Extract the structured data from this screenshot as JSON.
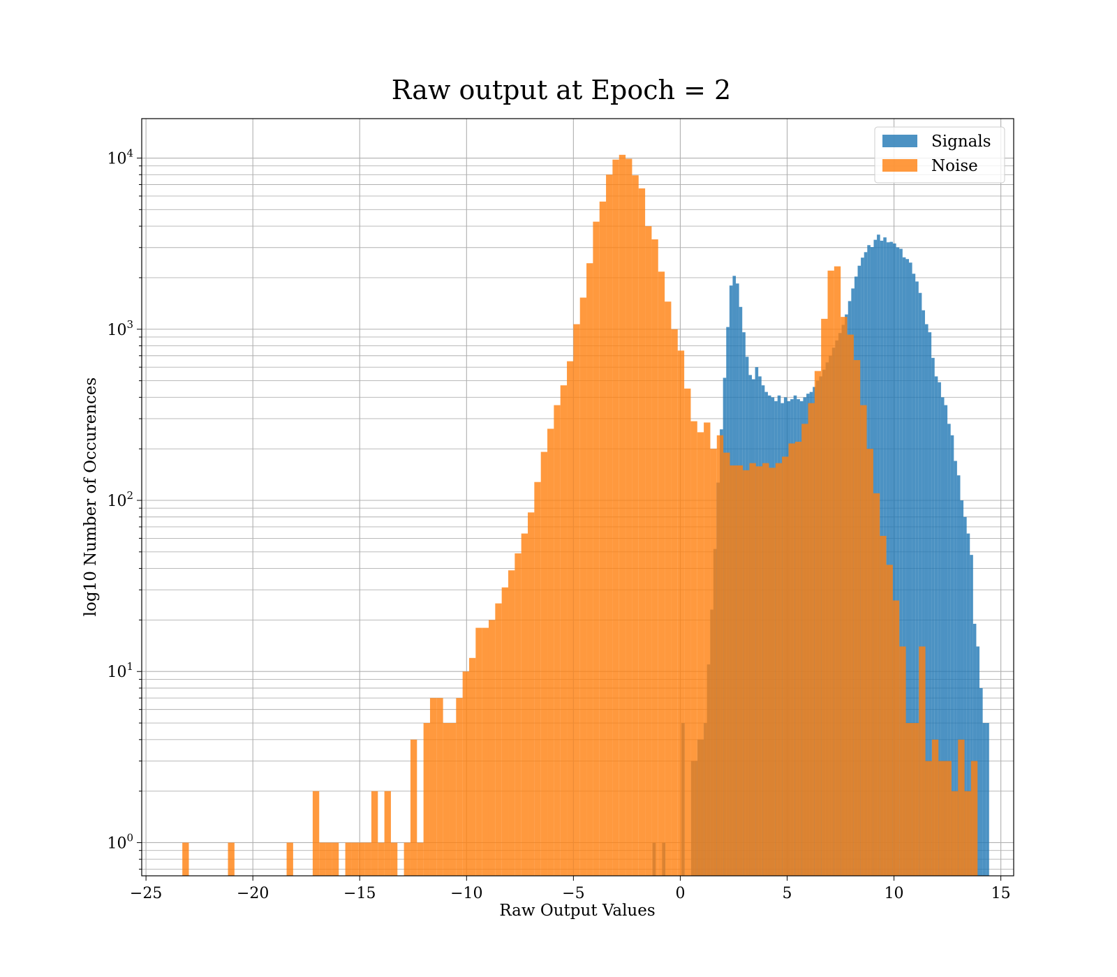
{
  "chart_data": {
    "type": "bar",
    "title": "Raw output at Epoch = 2",
    "xlabel": "Raw Output Values",
    "ylabel": "log10 Number of Occurences",
    "yscale": "log",
    "xlim": [
      -25.2,
      15.6
    ],
    "ylim": [
      0.64,
      17000
    ],
    "grid": true,
    "legend_position": "upper right",
    "xticks": [
      -25,
      -20,
      -15,
      -10,
      -5,
      0,
      5,
      10,
      15
    ],
    "xtick_labels": [
      "−25",
      "−20",
      "−15",
      "−10",
      "−5",
      "0",
      "5",
      "10",
      "15"
    ],
    "yticks": [
      {
        "value": 1,
        "base": "10",
        "exp": "0"
      },
      {
        "value": 10,
        "base": "10",
        "exp": "1"
      },
      {
        "value": 100,
        "base": "10",
        "exp": "2"
      },
      {
        "value": 1000,
        "base": "10",
        "exp": "3"
      },
      {
        "value": 10000,
        "base": "10",
        "exp": "4"
      }
    ],
    "series": [
      {
        "name": "Signals",
        "color": "#1f77b4",
        "opacity": 0.8,
        "bin_start": -1.3,
        "bin_width": 0.15,
        "values": [
          1,
          0,
          0,
          1,
          0,
          0,
          0,
          0,
          0,
          5,
          0,
          0,
          3,
          3,
          4,
          4,
          5,
          11,
          23,
          52,
          127,
          260,
          520,
          1030,
          1800,
          2050,
          1850,
          1350,
          960,
          690,
          540,
          510,
          600,
          530,
          470,
          430,
          410,
          400,
          380,
          410,
          370,
          400,
          380,
          390,
          410,
          390,
          380,
          400,
          420,
          430,
          460,
          500,
          530,
          580,
          640,
          700,
          780,
          860,
          950,
          1060,
          1220,
          1460,
          1730,
          2030,
          2350,
          2620,
          2820,
          3100,
          3020,
          3330,
          3570,
          3290,
          3440,
          3220,
          3240,
          3170,
          3010,
          2950,
          2630,
          2570,
          2450,
          2110,
          1900,
          1630,
          1290,
          1070,
          960,
          680,
          530,
          490,
          400,
          360,
          280,
          240,
          170,
          140,
          100,
          80,
          64,
          48,
          19,
          14,
          8,
          5,
          5,
          0
        ]
      },
      {
        "name": "Noise",
        "color": "#ff7f0e",
        "opacity": 0.8,
        "bin_start": -23.3,
        "bin_width": 0.305,
        "values": [
          1,
          0,
          0,
          0,
          0,
          0,
          0,
          1,
          0,
          0,
          0,
          0,
          0,
          0,
          0,
          0,
          1,
          0,
          0,
          0,
          2,
          1,
          1,
          1,
          0,
          1,
          1,
          1,
          1,
          2,
          1,
          2,
          1,
          0,
          1,
          4,
          1,
          5,
          7,
          7,
          5,
          5,
          7,
          10,
          12,
          18,
          18,
          20,
          25,
          31,
          39,
          49,
          64,
          85,
          128,
          192,
          262,
          360,
          470,
          650,
          1070,
          1530,
          2430,
          4250,
          5570,
          8000,
          9800,
          10450,
          9900,
          7930,
          6650,
          4000,
          3350,
          2170,
          1450,
          1000,
          750,
          450,
          290,
          250,
          285,
          200,
          240,
          190,
          160,
          160,
          150,
          165,
          158,
          165,
          155,
          165,
          180,
          215,
          220,
          280,
          370,
          570,
          1150,
          2200,
          2330,
          1180,
          930,
          660,
          360,
          200,
          110,
          62,
          42,
          26,
          14,
          5,
          5,
          14,
          3,
          4,
          3,
          3,
          2,
          4,
          2,
          3,
          0
        ]
      }
    ],
    "legend": [
      {
        "label": "Signals",
        "color": "#1f77b4"
      },
      {
        "label": "Noise",
        "color": "#ff7f0e"
      }
    ]
  }
}
